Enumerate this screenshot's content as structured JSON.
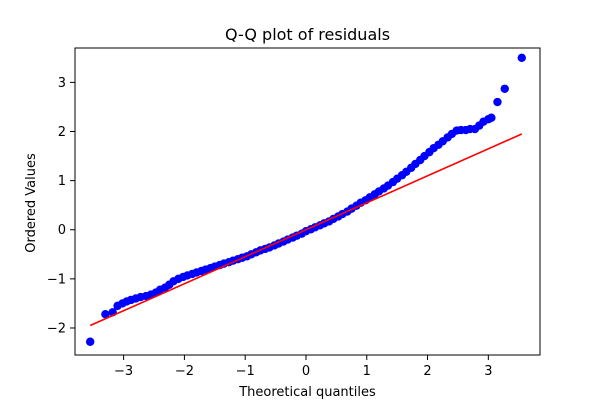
{
  "chart_data": {
    "type": "scatter",
    "title": "Q-Q plot of residuals",
    "xlabel": "Theoretical quantiles",
    "ylabel": "Ordered Values",
    "xlim": [
      -3.8,
      3.85
    ],
    "ylim": [
      -2.55,
      3.7
    ],
    "xticks": [
      -3,
      -2,
      -1,
      0,
      1,
      2,
      3
    ],
    "yticks": [
      -2,
      -1,
      0,
      1,
      2,
      3
    ],
    "xtick_labels": [
      "−3",
      "−2",
      "−1",
      "0",
      "1",
      "2",
      "3"
    ],
    "ytick_labels": [
      "−2",
      "−1",
      "0",
      "1",
      "2",
      "3"
    ],
    "grid": false,
    "colors": {
      "points": "#0000ff",
      "fit_line": "#ff0000"
    },
    "fit_line": {
      "x": [
        -3.55,
        3.55
      ],
      "y": [
        -1.95,
        1.95
      ]
    },
    "series": [
      {
        "x": [
          -3.55,
          -3.3,
          -3.18,
          -3.1,
          -3.02,
          -2.95,
          -2.88,
          -2.8,
          -2.72,
          -2.63,
          -2.55,
          -2.47,
          -2.4,
          -2.32,
          -2.25,
          -2.18,
          -2.1,
          -2.02,
          -1.95,
          -1.87,
          -1.8,
          -1.72,
          -1.65,
          -1.57,
          -1.5,
          -1.42,
          -1.35,
          -1.27,
          -1.2,
          -1.12,
          -1.05,
          -0.97,
          -0.9,
          -0.82,
          -0.75,
          -0.67,
          -0.6,
          -0.52,
          -0.45,
          -0.37,
          -0.3,
          -0.22,
          -0.15,
          -0.07,
          0.0,
          0.08,
          0.15,
          0.23,
          0.3,
          0.38,
          0.45,
          0.53,
          0.6,
          0.68,
          0.75,
          0.83,
          0.9,
          0.98,
          1.05,
          1.13,
          1.2,
          1.28,
          1.35,
          1.43,
          1.5,
          1.58,
          1.65,
          1.73,
          1.8,
          1.88,
          1.95,
          2.03,
          2.1,
          2.18,
          2.25,
          2.33,
          2.4,
          2.48,
          2.55,
          2.63,
          2.7,
          2.78,
          2.85,
          2.92,
          3.0,
          3.05,
          3.15,
          3.27,
          3.55
        ],
        "y": [
          -2.28,
          -1.72,
          -1.68,
          -1.55,
          -1.5,
          -1.46,
          -1.43,
          -1.4,
          -1.37,
          -1.35,
          -1.32,
          -1.28,
          -1.22,
          -1.18,
          -1.12,
          -1.05,
          -1.0,
          -0.96,
          -0.93,
          -0.9,
          -0.87,
          -0.84,
          -0.81,
          -0.78,
          -0.75,
          -0.72,
          -0.69,
          -0.66,
          -0.63,
          -0.6,
          -0.57,
          -0.54,
          -0.5,
          -0.46,
          -0.42,
          -0.39,
          -0.36,
          -0.32,
          -0.28,
          -0.24,
          -0.2,
          -0.16,
          -0.12,
          -0.08,
          -0.03,
          0.01,
          0.05,
          0.09,
          0.13,
          0.17,
          0.22,
          0.27,
          0.32,
          0.37,
          0.43,
          0.49,
          0.55,
          0.6,
          0.66,
          0.72,
          0.78,
          0.84,
          0.9,
          0.97,
          1.04,
          1.11,
          1.18,
          1.26,
          1.34,
          1.42,
          1.5,
          1.58,
          1.66,
          1.73,
          1.8,
          1.88,
          1.95,
          2.02,
          2.03,
          2.03,
          2.05,
          2.05,
          2.12,
          2.2,
          2.25,
          2.28,
          2.6,
          2.87,
          3.5
        ]
      }
    ]
  }
}
